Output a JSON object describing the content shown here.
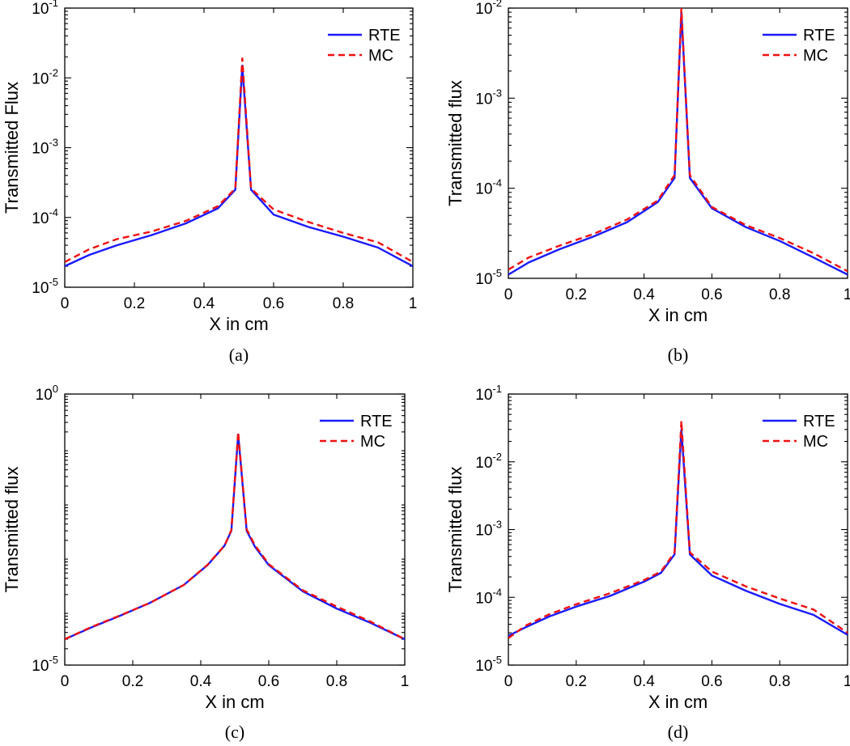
{
  "colors": {
    "rte": "#1a1aff",
    "mc": "#ee1111"
  },
  "chart_data": [
    {
      "type": "line",
      "caption": "(a)",
      "xlabel": "X in cm",
      "ylabel": "Transmitted Flux",
      "yscale": "log",
      "xlim": [
        0,
        1
      ],
      "ylim_exponents": [
        -5,
        -1
      ],
      "xticks": [
        "0",
        "0.2",
        "0.4",
        "0.6",
        "0.8",
        "1"
      ],
      "yticks": [
        {
          "base": "10",
          "exp": "-5",
          "value": 1e-05
        },
        {
          "base": "10",
          "exp": "-4",
          "value": 0.0001
        },
        {
          "base": "10",
          "exp": "-3",
          "value": 0.001
        },
        {
          "base": "10",
          "exp": "-2",
          "value": 0.01
        },
        {
          "base": "10",
          "exp": "-1",
          "value": 0.1
        }
      ],
      "legend": [
        "RTE",
        "MC"
      ],
      "legend_position": "top-right",
      "series": [
        {
          "name": "RTE",
          "style": "solid",
          "x": [
            0,
            0.07,
            0.15,
            0.25,
            0.35,
            0.44,
            0.49,
            0.51,
            0.535,
            0.6,
            0.7,
            0.8,
            0.9,
            1.0
          ],
          "y": [
            2e-05,
            2.9e-05,
            4e-05,
            5.6e-05,
            8.3e-05,
            0.000135,
            0.00025,
            0.015,
            0.00025,
            0.00011,
            7.3e-05,
            5.3e-05,
            3.7e-05,
            2e-05
          ]
        },
        {
          "name": "MC",
          "style": "dashed",
          "x": [
            0,
            0.07,
            0.15,
            0.25,
            0.35,
            0.44,
            0.49,
            0.51,
            0.535,
            0.6,
            0.7,
            0.8,
            0.9,
            1.0
          ],
          "y": [
            2.3e-05,
            3.5e-05,
            4.9e-05,
            6.3e-05,
            9e-05,
            0.000145,
            0.00026,
            0.019,
            0.00026,
            0.00013,
            8.6e-05,
            6e-05,
            4.4e-05,
            2.3e-05
          ]
        }
      ]
    },
    {
      "type": "line",
      "caption": "(b)",
      "xlabel": "X in cm",
      "ylabel": "Transmitted flux",
      "yscale": "log",
      "xlim": [
        0,
        1
      ],
      "ylim_exponents": [
        -5,
        -2
      ],
      "xticks": [
        "0",
        "0.2",
        "0.4",
        "0.6",
        "0.8",
        "1"
      ],
      "yticks": [
        {
          "base": "10",
          "exp": "-5",
          "value": 1e-05
        },
        {
          "base": "10",
          "exp": "-4",
          "value": 0.0001
        },
        {
          "base": "10",
          "exp": "-3",
          "value": 0.001
        },
        {
          "base": "10",
          "exp": "-2",
          "value": 0.01
        }
      ],
      "legend": [
        "RTE",
        "MC"
      ],
      "legend_position": "top-right",
      "series": [
        {
          "name": "RTE",
          "style": "solid",
          "x": [
            0,
            0.06,
            0.15,
            0.25,
            0.35,
            0.44,
            0.49,
            0.51,
            0.535,
            0.6,
            0.7,
            0.8,
            0.9,
            1.0
          ],
          "y": [
            1.1e-05,
            1.5e-05,
            2.1e-05,
            2.9e-05,
            4.2e-05,
            7e-05,
            0.00013,
            0.009,
            0.00013,
            6e-05,
            3.7e-05,
            2.6e-05,
            1.7e-05,
            1.1e-05
          ]
        },
        {
          "name": "MC",
          "style": "dashed",
          "x": [
            0,
            0.06,
            0.15,
            0.25,
            0.35,
            0.44,
            0.49,
            0.51,
            0.535,
            0.6,
            0.7,
            0.8,
            0.9,
            1.0
          ],
          "y": [
            1.25e-05,
            1.7e-05,
            2.3e-05,
            3.1e-05,
            4.5e-05,
            7.3e-05,
            0.00014,
            0.01,
            0.00014,
            6.2e-05,
            3.9e-05,
            2.8e-05,
            1.9e-05,
            1.2e-05
          ]
        }
      ]
    },
    {
      "type": "line",
      "caption": "(c)",
      "xlabel": "X in cm",
      "ylabel": "Transmitted flux",
      "yscale": "log",
      "xlim": [
        0,
        1
      ],
      "ylim_exponents": [
        -5,
        0
      ],
      "xticks": [
        "0",
        "0.2",
        "0.4",
        "0.6",
        "0.8",
        "1"
      ],
      "yticks": [
        {
          "base": "10",
          "exp": "-5",
          "value": 1e-05
        },
        {
          "base": "10",
          "exp": "0",
          "value": 1
        }
      ],
      "legend": [
        "RTE",
        "MC"
      ],
      "legend_position": "top-right",
      "series": [
        {
          "name": "RTE",
          "style": "solid",
          "x": [
            0,
            0.08,
            0.16,
            0.25,
            0.35,
            0.42,
            0.47,
            0.49,
            0.51,
            0.535,
            0.56,
            0.6,
            0.7,
            0.8,
            0.9,
            1.0
          ],
          "y": [
            3e-05,
            5e-05,
            8e-05,
            0.00014,
            0.0003,
            0.0007,
            0.0016,
            0.003,
            0.18,
            0.003,
            0.0015,
            0.0007,
            0.00023,
            0.00011,
            6e-05,
            3e-05
          ]
        },
        {
          "name": "MC",
          "style": "dashed",
          "x": [
            0,
            0.08,
            0.16,
            0.25,
            0.35,
            0.42,
            0.47,
            0.49,
            0.51,
            0.535,
            0.56,
            0.6,
            0.7,
            0.8,
            0.9,
            1.0
          ],
          "y": [
            3e-05,
            5.1e-05,
            8.1e-05,
            0.00014,
            0.0003,
            0.00071,
            0.0016,
            0.0031,
            0.2,
            0.0032,
            0.0016,
            0.00073,
            0.00024,
            0.00012,
            6.3e-05,
            3e-05
          ]
        }
      ]
    },
    {
      "type": "line",
      "caption": "(d)",
      "xlabel": "X in cm",
      "ylabel": "Transmitted flux",
      "yscale": "log",
      "xlim": [
        0,
        1
      ],
      "ylim_exponents": [
        -5,
        -1
      ],
      "xticks": [
        "0",
        "0.2",
        "0.4",
        "0.6",
        "0.8",
        "1"
      ],
      "yticks": [
        {
          "base": "10",
          "exp": "-5",
          "value": 1e-05
        },
        {
          "base": "10",
          "exp": "-4",
          "value": 0.0001
        },
        {
          "base": "10",
          "exp": "-3",
          "value": 0.001
        },
        {
          "base": "10",
          "exp": "-2",
          "value": 0.01
        },
        {
          "base": "10",
          "exp": "-1",
          "value": 0.1
        }
      ],
      "legend": [
        "RTE",
        "MC"
      ],
      "legend_position": "top-right",
      "series": [
        {
          "name": "RTE",
          "style": "solid",
          "x": [
            0,
            0.05,
            0.12,
            0.2,
            0.3,
            0.4,
            0.45,
            0.49,
            0.51,
            0.535,
            0.6,
            0.7,
            0.8,
            0.9,
            1.0
          ],
          "y": [
            2.7e-05,
            3.6e-05,
            5.2e-05,
            7.3e-05,
            0.000105,
            0.00017,
            0.00023,
            0.00043,
            0.03,
            0.00043,
            0.00021,
            0.000125,
            8e-05,
            5.5e-05,
            2.8e-05
          ]
        },
        {
          "name": "MC",
          "style": "dashed",
          "x": [
            0,
            0.05,
            0.12,
            0.2,
            0.3,
            0.4,
            0.45,
            0.49,
            0.51,
            0.535,
            0.6,
            0.7,
            0.8,
            0.9,
            1.0
          ],
          "y": [
            2.5e-05,
            3.8e-05,
            5.6e-05,
            7.9e-05,
            0.000115,
            0.00018,
            0.00024,
            0.00046,
            0.04,
            0.00046,
            0.00024,
            0.000145,
            9.6e-05,
            6.6e-05,
            3e-05
          ]
        }
      ]
    }
  ]
}
